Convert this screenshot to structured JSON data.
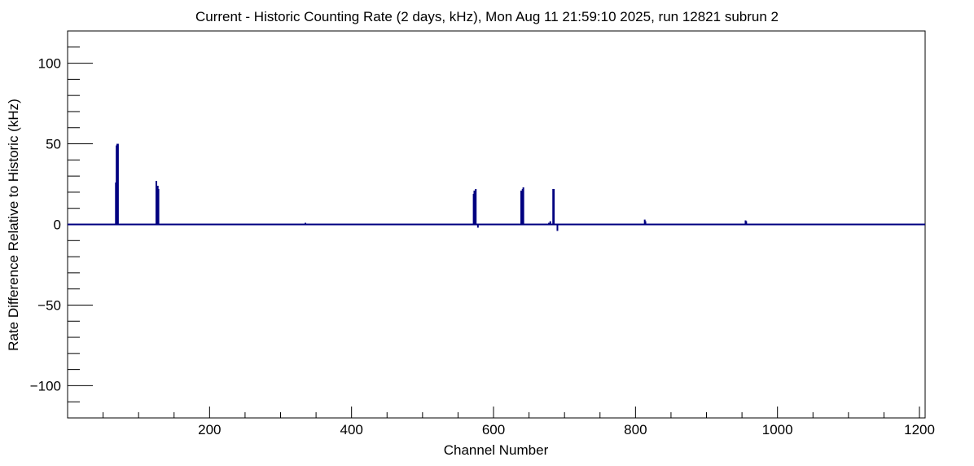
{
  "chart_data": {
    "type": "line",
    "title": "Current - Historic Counting Rate (2 days, kHz), Mon Aug 11 21:59:10 2025, run 12821 subrun 2",
    "xlabel": "Channel Number",
    "ylabel": "Rate Difference Relative to Historic (kHz)",
    "xlim": [
      0,
      1208
    ],
    "ylim": [
      -120,
      120
    ],
    "x_ticks": [
      200,
      400,
      600,
      800,
      1000,
      1200
    ],
    "y_ticks": [
      -100,
      -50,
      0,
      50,
      100
    ],
    "grid": false,
    "legend": "none",
    "series": [
      {
        "color": "#000080",
        "points": [
          [
            68,
            26
          ],
          [
            69,
            49
          ],
          [
            70,
            50
          ],
          [
            71,
            50
          ],
          [
            125,
            27
          ],
          [
            126,
            23
          ],
          [
            127,
            24
          ],
          [
            128,
            22
          ],
          [
            155,
            -0.5
          ],
          [
            172,
            0.5
          ],
          [
            287,
            -0.5
          ],
          [
            335,
            1
          ],
          [
            360,
            0.5
          ],
          [
            376,
            0.5
          ],
          [
            550,
            0.5
          ],
          [
            572,
            19
          ],
          [
            573,
            21
          ],
          [
            574,
            20
          ],
          [
            575,
            22
          ],
          [
            578,
            -2
          ],
          [
            638,
            -0.5
          ],
          [
            639,
            21
          ],
          [
            640,
            20
          ],
          [
            641,
            22
          ],
          [
            642,
            23
          ],
          [
            678,
            1
          ],
          [
            680,
            2
          ],
          [
            684,
            22
          ],
          [
            685,
            22
          ],
          [
            690,
            -4
          ],
          [
            780,
            -0.5
          ],
          [
            813,
            3
          ],
          [
            814,
            2
          ],
          [
            900,
            -0.5
          ],
          [
            955,
            2.5
          ],
          [
            956,
            2
          ],
          [
            975,
            -0.5
          ],
          [
            1008,
            -0.5
          ],
          [
            1085,
            -0.5
          ],
          [
            1107,
            -0.5
          ],
          [
            1162,
            -0.5
          ]
        ]
      }
    ]
  }
}
